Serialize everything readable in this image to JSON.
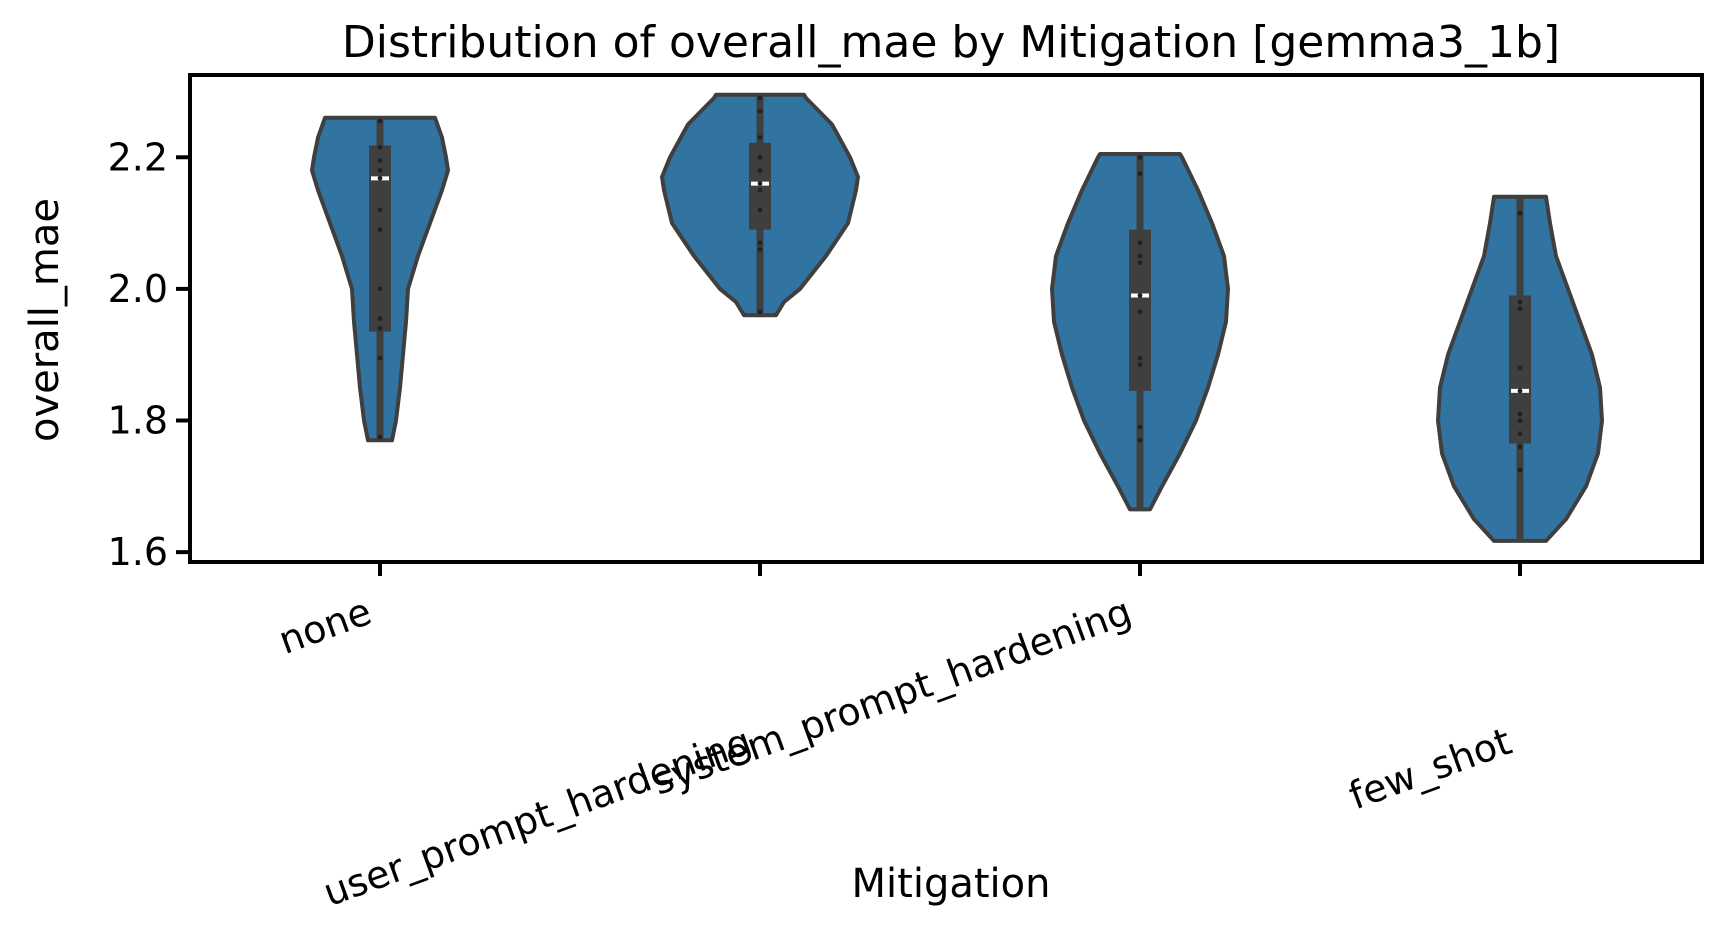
{
  "chart_data": {
    "type": "violin",
    "title": "Distribution of overall_mae by Mitigation [gemma3_1b]",
    "xlabel": "Mitigation",
    "ylabel": "overall_mae",
    "ylim": [
      1.585,
      2.325
    ],
    "yticks": [
      1.6,
      1.8,
      2.0,
      2.2
    ],
    "ytick_labels": [
      "1.6",
      "1.8",
      "2.0",
      "2.2"
    ],
    "categories": [
      "none",
      "user_prompt_hardening",
      "system_prompt_hardening",
      "few_shot"
    ],
    "colors": {
      "violin": "#3274a1",
      "outline": "#3f3f3f",
      "box": "#3f3f3f",
      "median": "#ffffff",
      "axis": "#000000"
    },
    "grid": false,
    "legend": "none",
    "series": [
      {
        "category": "none",
        "min": 1.77,
        "q1": 1.935,
        "median": 2.168,
        "q3": 2.218,
        "max": 2.26,
        "points": [
          2.255,
          2.215,
          2.195,
          2.18,
          2.168,
          2.12,
          2.09,
          2.0,
          1.955,
          1.94,
          1.895,
          1.775
        ],
        "density": [
          [
            1.77,
            0.12
          ],
          [
            1.8,
            0.16
          ],
          [
            1.85,
            0.2
          ],
          [
            1.9,
            0.23
          ],
          [
            1.95,
            0.26
          ],
          [
            2.0,
            0.28
          ],
          [
            2.05,
            0.38
          ],
          [
            2.1,
            0.5
          ],
          [
            2.15,
            0.62
          ],
          [
            2.18,
            0.68
          ],
          [
            2.2,
            0.66
          ],
          [
            2.23,
            0.62
          ],
          [
            2.26,
            0.55
          ]
        ]
      },
      {
        "category": "user_prompt_hardening",
        "min": 1.96,
        "q1": 2.09,
        "median": 2.16,
        "q3": 2.222,
        "max": 2.295,
        "points": [
          2.29,
          2.27,
          2.23,
          2.2,
          2.18,
          2.16,
          2.15,
          2.12,
          2.07,
          2.06,
          1.965
        ],
        "density": [
          [
            1.96,
            0.16
          ],
          [
            1.98,
            0.24
          ],
          [
            2.0,
            0.4
          ],
          [
            2.05,
            0.66
          ],
          [
            2.1,
            0.88
          ],
          [
            2.15,
            0.96
          ],
          [
            2.17,
            0.98
          ],
          [
            2.2,
            0.9
          ],
          [
            2.25,
            0.72
          ],
          [
            2.29,
            0.46
          ],
          [
            2.295,
            0.44
          ]
        ]
      },
      {
        "category": "system_prompt_hardening",
        "min": 1.665,
        "q1": 1.845,
        "median": 1.99,
        "q3": 2.09,
        "max": 2.205,
        "points": [
          2.2,
          2.175,
          2.07,
          2.05,
          2.04,
          1.99,
          1.965,
          1.895,
          1.885,
          1.79,
          1.77
        ],
        "density": [
          [
            1.665,
            0.1
          ],
          [
            1.7,
            0.22
          ],
          [
            1.75,
            0.4
          ],
          [
            1.8,
            0.56
          ],
          [
            1.85,
            0.68
          ],
          [
            1.9,
            0.78
          ],
          [
            1.95,
            0.86
          ],
          [
            2.0,
            0.88
          ],
          [
            2.05,
            0.84
          ],
          [
            2.1,
            0.72
          ],
          [
            2.15,
            0.58
          ],
          [
            2.2,
            0.42
          ],
          [
            2.205,
            0.4
          ]
        ]
      },
      {
        "category": "few_shot",
        "min": 1.617,
        "q1": 1.765,
        "median": 1.845,
        "q3": 1.99,
        "max": 2.14,
        "points": [
          2.115,
          1.98,
          1.97,
          1.88,
          1.845,
          1.81,
          1.8,
          1.78,
          1.76,
          1.725
        ],
        "density": [
          [
            1.617,
            0.26
          ],
          [
            1.65,
            0.46
          ],
          [
            1.7,
            0.66
          ],
          [
            1.75,
            0.78
          ],
          [
            1.8,
            0.82
          ],
          [
            1.85,
            0.8
          ],
          [
            1.9,
            0.72
          ],
          [
            1.95,
            0.6
          ],
          [
            2.0,
            0.48
          ],
          [
            2.05,
            0.36
          ],
          [
            2.1,
            0.3
          ],
          [
            2.14,
            0.26
          ]
        ]
      }
    ]
  }
}
